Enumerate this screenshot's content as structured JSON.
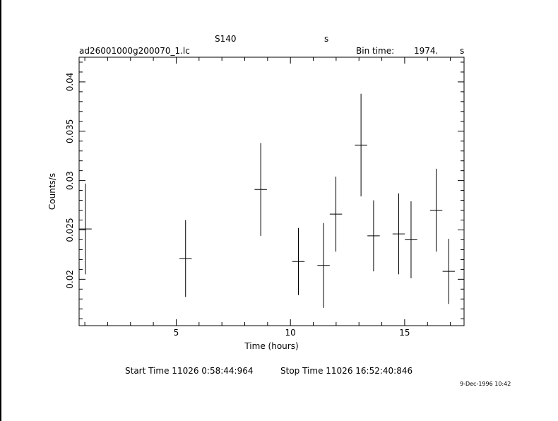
{
  "header": {
    "object": "S140",
    "object_unit": "s",
    "filename": "ad26001000g200070_1.lc",
    "bin_time_label": "Bin time:",
    "bin_time_value": "1974.",
    "bin_time_unit": "s"
  },
  "footer": {
    "start_label": "Start Time 11026  0:58:44:964",
    "stop_label": "Stop Time 11026 16:52:40:846",
    "timestamp": "9-Dec-1996 10:42"
  },
  "chart_data": {
    "type": "scatter",
    "title": "",
    "xlabel": "Time (hours)",
    "ylabel": "Counts/s",
    "xlim": [
      0.75,
      17.6
    ],
    "ylim": [
      0.0153,
      0.0425
    ],
    "xticks_major": [
      5,
      10,
      15
    ],
    "xticks_major_labels": [
      "5",
      "10",
      "15"
    ],
    "yticks_major": [
      0.02,
      0.025,
      0.03,
      0.035,
      0.04
    ],
    "yticks_major_labels": [
      "0.02",
      "0.025",
      "0.03",
      "0.035",
      "0.04"
    ],
    "grid": false,
    "points": [
      {
        "x": 1.03,
        "xerr": 0.27,
        "y": 0.0251,
        "yerr": 0.0046
      },
      {
        "x": 5.41,
        "xerr": 0.27,
        "y": 0.0221,
        "yerr": 0.0039
      },
      {
        "x": 8.7,
        "xerr": 0.27,
        "y": 0.0291,
        "yerr": 0.0047
      },
      {
        "x": 10.35,
        "xerr": 0.27,
        "y": 0.0218,
        "yerr": 0.0034
      },
      {
        "x": 11.45,
        "xerr": 0.27,
        "y": 0.0214,
        "yerr": 0.0043
      },
      {
        "x": 11.99,
        "xerr": 0.27,
        "y": 0.0266,
        "yerr": 0.0038
      },
      {
        "x": 13.09,
        "xerr": 0.27,
        "y": 0.0336,
        "yerr": 0.0052
      },
      {
        "x": 13.64,
        "xerr": 0.27,
        "y": 0.0244,
        "yerr": 0.0036
      },
      {
        "x": 14.74,
        "xerr": 0.27,
        "y": 0.0246,
        "yerr": 0.0041
      },
      {
        "x": 15.28,
        "xerr": 0.27,
        "y": 0.024,
        "yerr": 0.0039
      },
      {
        "x": 16.38,
        "xerr": 0.27,
        "y": 0.027,
        "yerr": 0.0042
      },
      {
        "x": 16.93,
        "xerr": 0.27,
        "y": 0.0208,
        "yerr": 0.0033
      }
    ]
  }
}
